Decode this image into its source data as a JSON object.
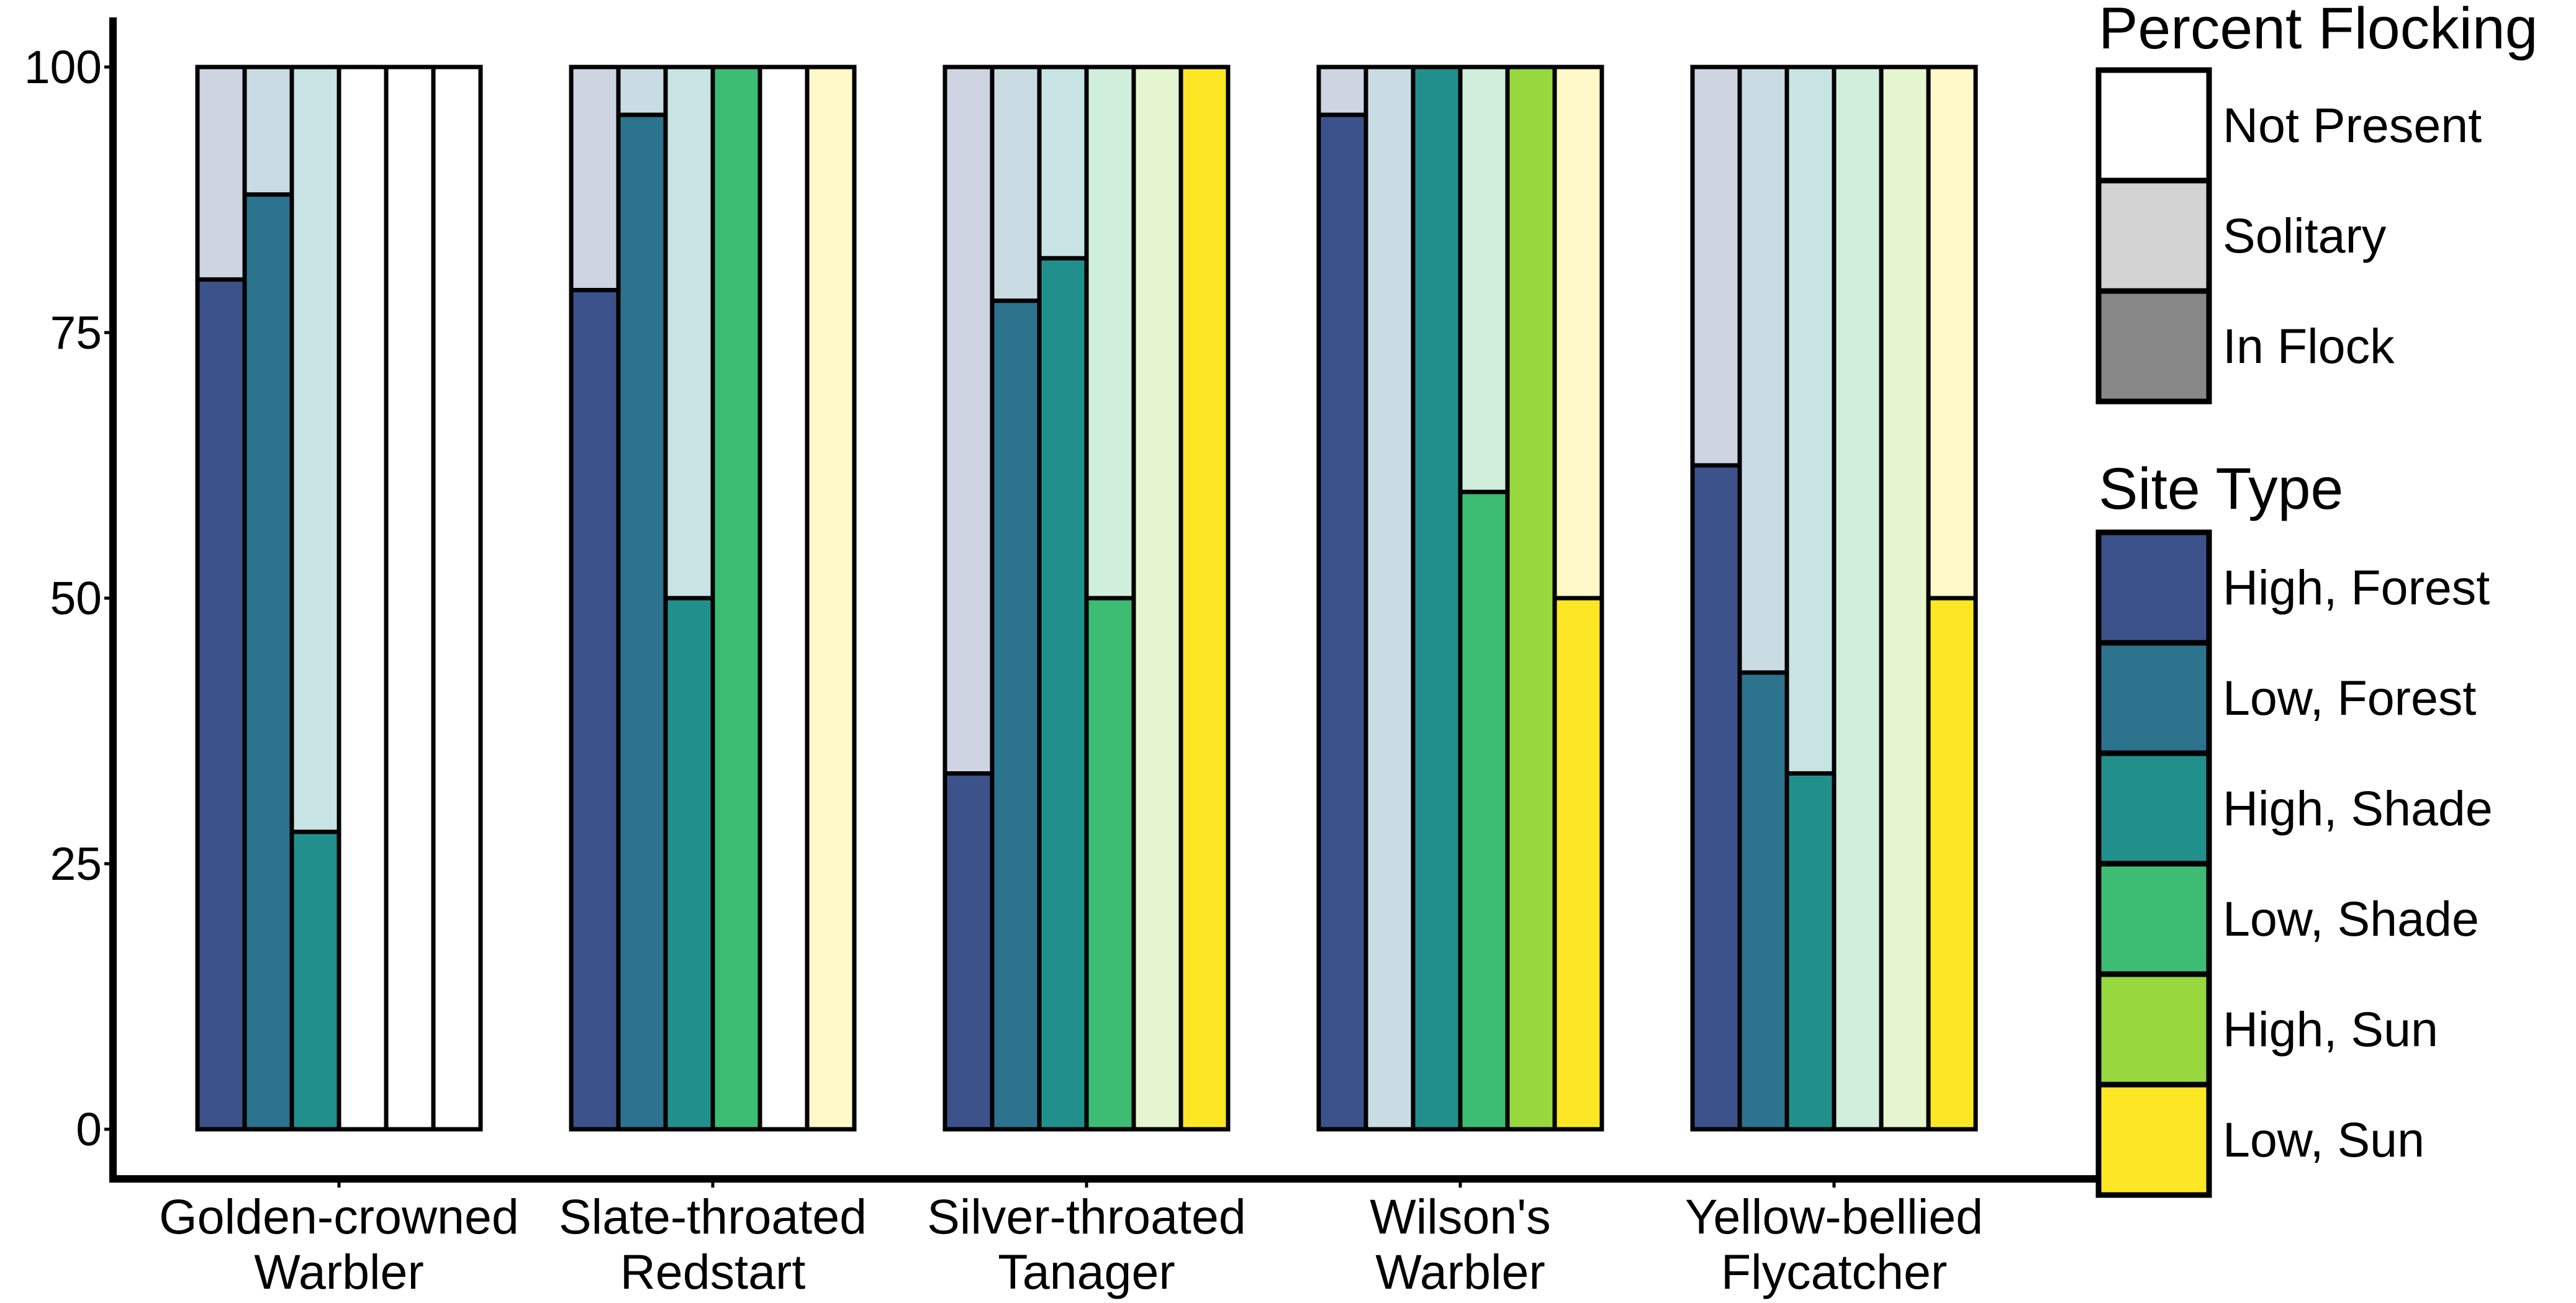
{
  "chart_data": {
    "type": "bar",
    "stacked": true,
    "categories": [
      {
        "line1": "Golden-crowned",
        "line2": "Warbler"
      },
      {
        "line1": "Slate-throated",
        "line2": "Redstart"
      },
      {
        "line1": "Silver-throated",
        "line2": "Tanager"
      },
      {
        "line1": "Wilson's",
        "line2": "Warbler"
      },
      {
        "line1": "Yellow-bellied",
        "line2": "Flycatcher"
      }
    ],
    "site_types": [
      "High, Forest",
      "Low, Forest",
      "High, Shade",
      "Low, Shade",
      "High, Sun",
      "Low, Sun"
    ],
    "site_colors": [
      "#3b528b",
      "#2c738e",
      "#21908d",
      "#3dbc74",
      "#97d83f",
      "#fde725"
    ],
    "y_ticks": [
      0,
      25,
      50,
      75,
      100
    ],
    "ylim": [
      0,
      100
    ],
    "bars": [
      [
        {
          "status": "present",
          "in_flock": 80,
          "solitary": 20
        },
        {
          "status": "present",
          "in_flock": 88,
          "solitary": 12
        },
        {
          "status": "present",
          "in_flock": 28,
          "solitary": 72
        },
        {
          "status": "not_present"
        },
        {
          "status": "not_present"
        },
        {
          "status": "not_present"
        }
      ],
      [
        {
          "status": "present",
          "in_flock": 79,
          "solitary": 21
        },
        {
          "status": "present",
          "in_flock": 95.5,
          "solitary": 4.5
        },
        {
          "status": "present",
          "in_flock": 50,
          "solitary": 50
        },
        {
          "status": "present",
          "in_flock": 100,
          "solitary": 0
        },
        {
          "status": "not_present"
        },
        {
          "status": "present",
          "in_flock": 0,
          "solitary": 100
        }
      ],
      [
        {
          "status": "present",
          "in_flock": 33.5,
          "solitary": 66.5
        },
        {
          "status": "present",
          "in_flock": 78,
          "solitary": 22
        },
        {
          "status": "present",
          "in_flock": 82,
          "solitary": 18
        },
        {
          "status": "present",
          "in_flock": 50,
          "solitary": 50
        },
        {
          "status": "present",
          "in_flock": 0,
          "solitary": 100
        },
        {
          "status": "present",
          "in_flock": 100,
          "solitary": 0
        }
      ],
      [
        {
          "status": "present",
          "in_flock": 95.5,
          "solitary": 4.5
        },
        {
          "status": "present",
          "in_flock": 0,
          "solitary": 100
        },
        {
          "status": "present",
          "in_flock": 100,
          "solitary": 0
        },
        {
          "status": "present",
          "in_flock": 60,
          "solitary": 40
        },
        {
          "status": "present",
          "in_flock": 100,
          "solitary": 0
        },
        {
          "status": "present",
          "in_flock": 50,
          "solitary": 50
        }
      ],
      [
        {
          "status": "present",
          "in_flock": 62.5,
          "solitary": 37.5
        },
        {
          "status": "present",
          "in_flock": 43,
          "solitary": 57
        },
        {
          "status": "present",
          "in_flock": 33.5,
          "solitary": 66.5
        },
        {
          "status": "present",
          "in_flock": 0,
          "solitary": 100
        },
        {
          "status": "present",
          "in_flock": 0,
          "solitary": 100
        },
        {
          "status": "present",
          "in_flock": 50,
          "solitary": 50
        }
      ]
    ],
    "legend_flocking": {
      "title": "Percent Flocking",
      "items": [
        {
          "label": "Not Present",
          "color": "#ffffff"
        },
        {
          "label": "Solitary",
          "color": "#d3d3d3"
        },
        {
          "label": "In Flock",
          "color": "#878787"
        }
      ]
    },
    "legend_site": {
      "title": "Site Type",
      "items": [
        {
          "label": "High, Forest",
          "color": "#3b528b"
        },
        {
          "label": "Low, Forest",
          "color": "#2c738e"
        },
        {
          "label": "High, Shade",
          "color": "#21908d"
        },
        {
          "label": "Low, Shade",
          "color": "#3dbc74"
        },
        {
          "label": "High, Sun",
          "color": "#97d83f"
        },
        {
          "label": "Low, Sun",
          "color": "#fde725"
        }
      ]
    },
    "legend_placement": "right",
    "grid": false
  }
}
